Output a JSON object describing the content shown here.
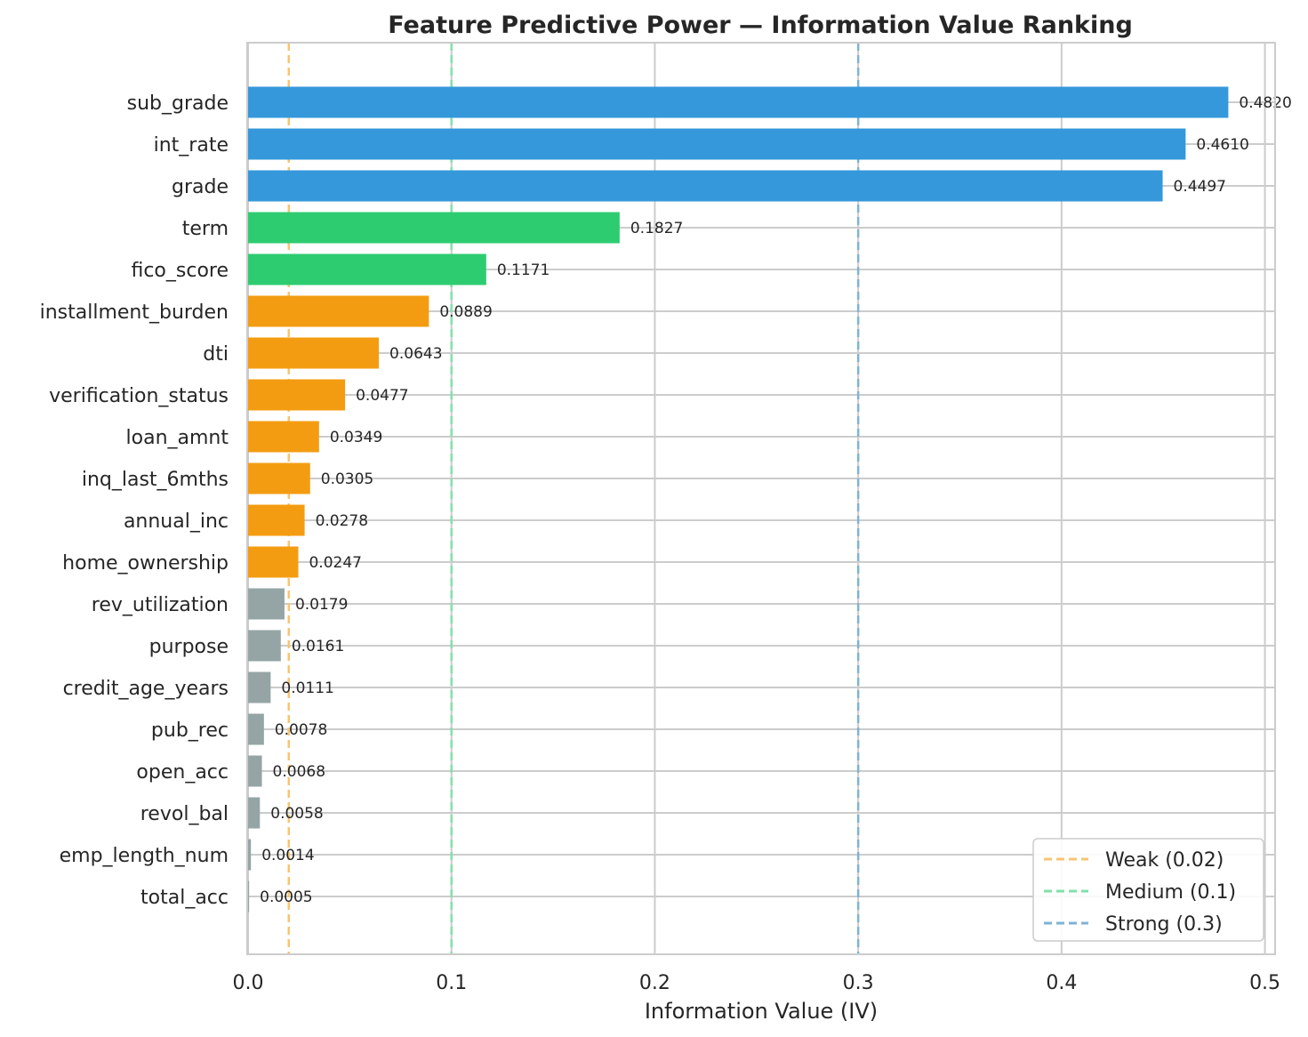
{
  "chart_data": {
    "type": "bar",
    "orientation": "horizontal",
    "title": "Feature Predictive Power — Information Value Ranking",
    "xlabel": "Information Value (IV)",
    "ylabel": "",
    "xlim": [
      0,
      0.505
    ],
    "xticks": [
      0.0,
      0.1,
      0.2,
      0.3,
      0.4,
      0.5
    ],
    "xtick_labels": [
      "0.0",
      "0.1",
      "0.2",
      "0.3",
      "0.4",
      "0.5"
    ],
    "grid": true,
    "legend_position": "bottom-right",
    "categories": [
      "sub_grade",
      "int_rate",
      "grade",
      "term",
      "fico_score",
      "installment_burden",
      "dti",
      "verification_status",
      "loan_amnt",
      "inq_last_6mths",
      "annual_inc",
      "home_ownership",
      "rev_utilization",
      "purpose",
      "credit_age_years",
      "pub_rec",
      "open_acc",
      "revol_bal",
      "emp_length_num",
      "total_acc"
    ],
    "values": [
      0.482,
      0.461,
      0.4497,
      0.1827,
      0.1171,
      0.0889,
      0.0643,
      0.0477,
      0.0349,
      0.0305,
      0.0278,
      0.0247,
      0.0179,
      0.0161,
      0.0111,
      0.0078,
      0.0068,
      0.0058,
      0.0014,
      0.0005
    ],
    "value_labels": [
      "0.4820",
      "0.4610",
      "0.4497",
      "0.1827",
      "0.1171",
      "0.0889",
      "0.0643",
      "0.0477",
      "0.0349",
      "0.0305",
      "0.0278",
      "0.0247",
      "0.0179",
      "0.0161",
      "0.0111",
      "0.0078",
      "0.0068",
      "0.0058",
      "0.0014",
      "0.0005"
    ],
    "bar_colors": [
      "#3498db",
      "#3498db",
      "#3498db",
      "#2ecc71",
      "#2ecc71",
      "#f39c12",
      "#f39c12",
      "#f39c12",
      "#f39c12",
      "#f39c12",
      "#f39c12",
      "#f39c12",
      "#95a5a6",
      "#95a5a6",
      "#95a5a6",
      "#95a5a6",
      "#95a5a6",
      "#95a5a6",
      "#95a5a6",
      "#95a5a6"
    ],
    "thresholds": [
      {
        "label": "Weak (0.02)",
        "value": 0.02,
        "color": "#f8c471"
      },
      {
        "label": "Medium (0.1)",
        "value": 0.1,
        "color": "#82e0aa"
      },
      {
        "label": "Strong (0.3)",
        "value": 0.3,
        "color": "#7fb3d5"
      }
    ]
  }
}
